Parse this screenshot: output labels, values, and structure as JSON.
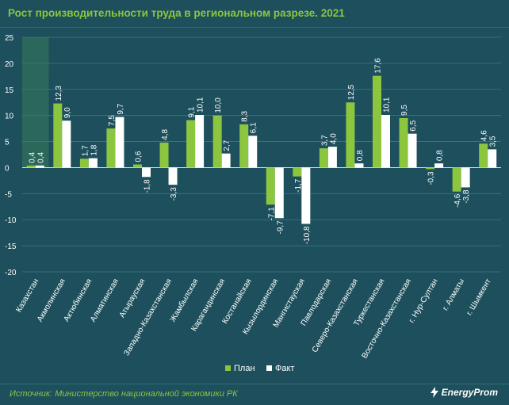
{
  "title": "Рост производительности труда в региональном разрезе. 2021",
  "source": "Источник: Министерство национальной экономики РК",
  "brand": {
    "name": "EnergyProm",
    "icon": "lightning-icon"
  },
  "colors": {
    "background": "#1d4f5c",
    "plan": "#8cc63f",
    "fact": "#ffffff",
    "accent": "#8cc63f"
  },
  "chart_data": {
    "type": "bar",
    "categories": [
      "Казахстан",
      "Акмолинская",
      "Актюбинская",
      "Алматинская",
      "Атырауская",
      "Западно-Казахстанская",
      "Жамбылская",
      "Карагандинская",
      "Костанайская",
      "Кызылординская",
      "Мангистауская",
      "Павлодарская",
      "Северо-Казахстанская",
      "Туркестанская",
      "Восточно-Казахстанская",
      "г. Нур-Султан",
      "г. Алматы",
      "г. Шымкент"
    ],
    "series": [
      {
        "name": "План",
        "values": [
          0.4,
          12.3,
          1.7,
          7.5,
          0.6,
          4.8,
          9.1,
          10.0,
          8.3,
          -7.1,
          -1.7,
          3.7,
          12.5,
          17.6,
          9.5,
          -0.3,
          -4.6,
          4.6
        ],
        "labels": [
          "0,4",
          "12,3",
          "1,7",
          "7,5",
          "0,6",
          "4,8",
          "9,1",
          "10,0",
          "8,3",
          "-7,1",
          "-1,7",
          "3,7",
          "12,5",
          "17,6",
          "9,5",
          "-0,3",
          "-4,6",
          "4,6"
        ]
      },
      {
        "name": "Факт",
        "values": [
          0.4,
          9.0,
          1.8,
          9.7,
          -1.8,
          -3.3,
          10.1,
          2.7,
          6.1,
          -9.7,
          -10.8,
          4.0,
          0.8,
          10.1,
          6.5,
          0.8,
          -3.8,
          3.5
        ],
        "labels": [
          "0,4",
          "9,0",
          "1,8",
          "9,7",
          "-1,8",
          "-3,3",
          "10,1",
          "2,7",
          "6,1",
          "-9,7",
          "-10,8",
          "4,0",
          "0,8",
          "10,1",
          "6,5",
          "0,8",
          "-3,8",
          "3,5"
        ]
      }
    ],
    "ylim": [
      -20,
      25
    ],
    "yticks": [
      25,
      20,
      15,
      10,
      5,
      0,
      -5,
      -10,
      -15,
      -20
    ],
    "ytick_labels": [
      "25",
      "20",
      "15",
      "10",
      "5",
      "0",
      "-5",
      "-10",
      "-15",
      "-20"
    ],
    "grid": true,
    "legend": "bottom-center",
    "highlighted_category": "Казахстан"
  }
}
